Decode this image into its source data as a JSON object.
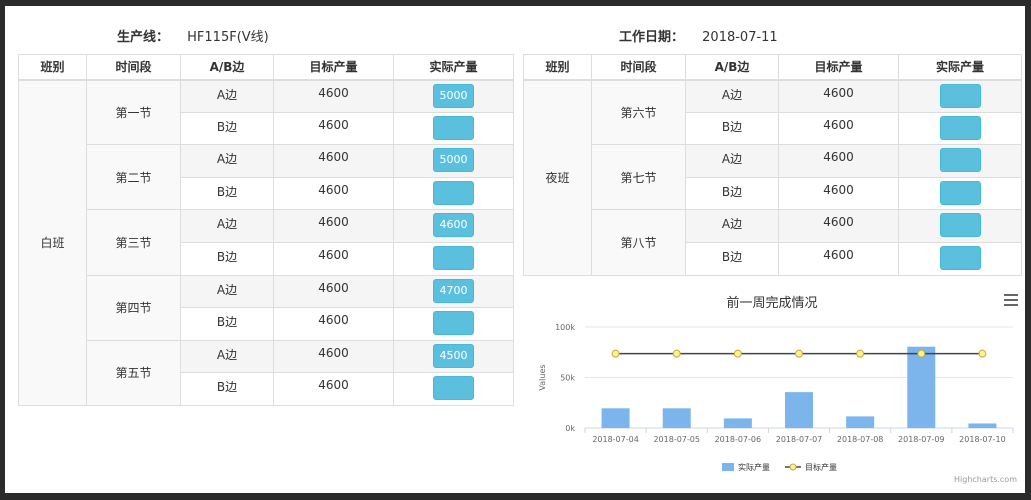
{
  "header": {
    "line_label": "生产线：",
    "line_value": "HF115F(V线)",
    "date_label": "工作日期：",
    "date_value": "2018-07-11"
  },
  "columns": [
    "班别",
    "时间段",
    "A/B边",
    "目标产量",
    "实际产量"
  ],
  "day": {
    "shift": "白班",
    "periods": [
      {
        "name": "第一节",
        "a": {
          "side": "A边",
          "target": "4600",
          "actual": "5000"
        },
        "b": {
          "side": "B边",
          "target": "4600",
          "actual": ""
        }
      },
      {
        "name": "第二节",
        "a": {
          "side": "A边",
          "target": "4600",
          "actual": "5000"
        },
        "b": {
          "side": "B边",
          "target": "4600",
          "actual": ""
        }
      },
      {
        "name": "第三节",
        "a": {
          "side": "A边",
          "target": "4600",
          "actual": "4600"
        },
        "b": {
          "side": "B边",
          "target": "4600",
          "actual": ""
        }
      },
      {
        "name": "第四节",
        "a": {
          "side": "A边",
          "target": "4600",
          "actual": "4700"
        },
        "b": {
          "side": "B边",
          "target": "4600",
          "actual": ""
        }
      },
      {
        "name": "第五节",
        "a": {
          "side": "A边",
          "target": "4600",
          "actual": "4500"
        },
        "b": {
          "side": "B边",
          "target": "4600",
          "actual": ""
        }
      }
    ]
  },
  "night": {
    "shift": "夜班",
    "periods": [
      {
        "name": "第六节",
        "a": {
          "side": "A边",
          "target": "4600",
          "actual": ""
        },
        "b": {
          "side": "B边",
          "target": "4600",
          "actual": ""
        }
      },
      {
        "name": "第七节",
        "a": {
          "side": "A边",
          "target": "4600",
          "actual": ""
        },
        "b": {
          "side": "B边",
          "target": "4600",
          "actual": ""
        }
      },
      {
        "name": "第八节",
        "a": {
          "side": "A边",
          "target": "4600",
          "actual": ""
        },
        "b": {
          "side": "B边",
          "target": "4600",
          "actual": ""
        }
      }
    ]
  },
  "chart": {
    "menu_icon": "hamburger-menu-icon",
    "credits": "Highcharts.com"
  },
  "chart_data": {
    "type": "bar",
    "title": "前一周完成情况",
    "ylabel": "Values",
    "xlabel": "",
    "ylim": [
      0,
      100000
    ],
    "yticks": [
      "0k",
      "50k",
      "100k"
    ],
    "categories": [
      "2018-07-04",
      "2018-07-05",
      "2018-07-06",
      "2018-07-07",
      "2018-07-08",
      "2018-07-09",
      "2018-07-10"
    ],
    "series": [
      {
        "name": "实际产量",
        "type": "bar",
        "color": "#7cb5ec",
        "values": [
          19500,
          19500,
          9500,
          35500,
          11500,
          80500,
          4500
        ]
      },
      {
        "name": "目标产量",
        "type": "line",
        "color": "#434348",
        "marker_fill": "#f7f38d",
        "values": [
          73600,
          73600,
          73600,
          73600,
          73600,
          73600,
          73600
        ]
      }
    ],
    "legend": "bottom-center",
    "grid": true
  }
}
